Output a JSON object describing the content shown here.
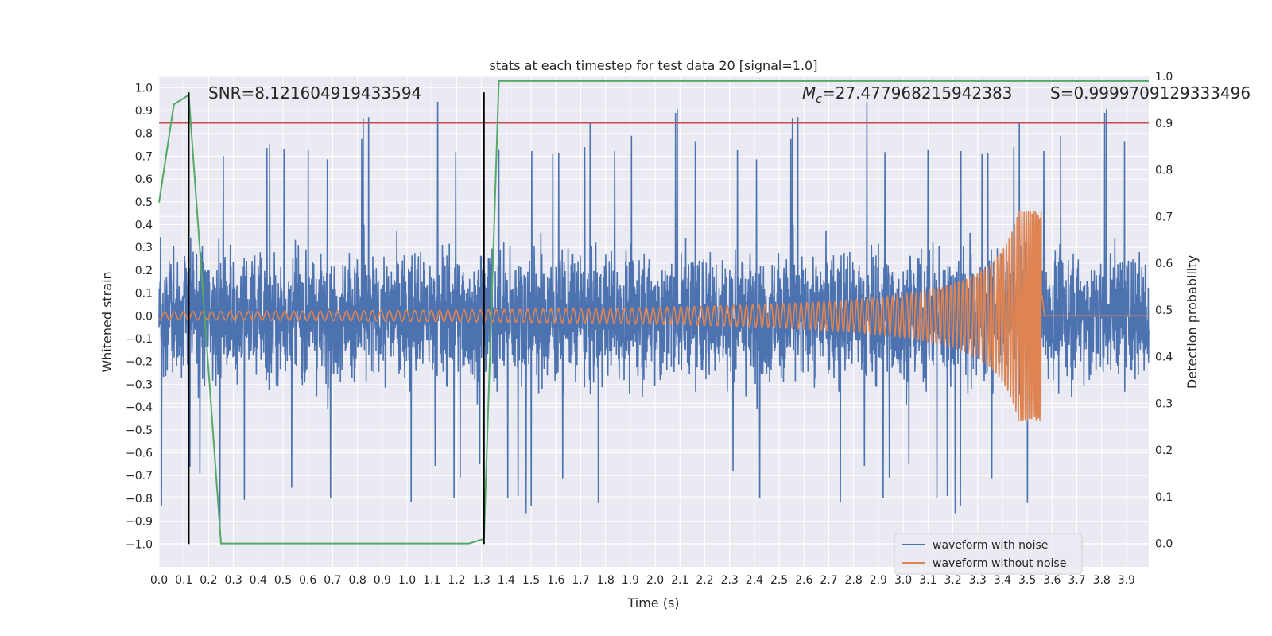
{
  "chart_data": {
    "type": "line",
    "title": "stats at each timestep for test data 20 [signal=1.0]",
    "xlabel": "Time (s)",
    "ylabel": "Whitened strain",
    "y2label": "Detection probability",
    "xlim": [
      0.0,
      3.99
    ],
    "ylim": [
      -1.1,
      1.05
    ],
    "y2lim": [
      -0.05,
      1.0
    ],
    "x_ticks": [
      0.0,
      0.1,
      0.2,
      0.3,
      0.4,
      0.5,
      0.6,
      0.7,
      0.8,
      0.9,
      1.0,
      1.1,
      1.2,
      1.3,
      1.4,
      1.5,
      1.6,
      1.7,
      1.8,
      1.9,
      2.0,
      2.1,
      2.2,
      2.3,
      2.4,
      2.5,
      2.6,
      2.7,
      2.8,
      2.9,
      3.0,
      3.1,
      3.2,
      3.3,
      3.4,
      3.5,
      3.6,
      3.7,
      3.8,
      3.9
    ],
    "x_tick_labels": [
      "0.0",
      "0.1",
      "0.2",
      "0.3",
      "0.4",
      "0.5",
      "0.6",
      "0.7",
      "0.8",
      "0.9",
      "1.0",
      "1.1",
      "1.2",
      "1.3",
      "1.4",
      "1.5",
      "1.6",
      "1.7",
      "1.8",
      "1.9",
      "2.0",
      "2.1",
      "2.2",
      "2.3",
      "2.4",
      "2.5",
      "2.6",
      "2.7",
      "2.8",
      "2.9",
      "3.0",
      "3.1",
      "3.2",
      "3.3",
      "3.4",
      "3.5",
      "3.6",
      "3.7",
      "3.8",
      "3.9"
    ],
    "y_ticks": [
      1.0,
      0.9,
      0.8,
      0.7,
      0.6,
      0.5,
      0.4,
      0.3,
      0.2,
      0.1,
      0.0,
      -0.1,
      -0.2,
      -0.3,
      -0.4,
      -0.5,
      -0.6,
      -0.7,
      -0.8,
      -0.9,
      -1.0
    ],
    "y_tick_labels": [
      "1.0",
      "0.9",
      "0.8",
      "0.7",
      "0.6",
      "0.5",
      "0.4",
      "0.3",
      "0.2",
      "0.1",
      "0.0",
      "−0.1",
      "−0.2",
      "−0.3",
      "−0.4",
      "−0.5",
      "−0.6",
      "−0.7",
      "−0.8",
      "−0.9",
      "−1.0"
    ],
    "y2_ticks": [
      1.0,
      0.9,
      0.8,
      0.7,
      0.6,
      0.5,
      0.4,
      0.3,
      0.2,
      0.1,
      0.0
    ],
    "y2_tick_labels": [
      "1.0",
      "0.9",
      "0.8",
      "0.7",
      "0.6",
      "0.5",
      "0.4",
      "0.3",
      "0.2",
      "0.1",
      "0.0"
    ],
    "annotations": {
      "snr": "SNR=8.121604919433594",
      "mc_symbol": "M",
      "mc_sub": "c",
      "mc_value": "=27.477968215942383",
      "s": "S=0.9999709129333496"
    },
    "series": [
      {
        "name": "waveform with noise",
        "color": "#4c72b0",
        "kind": "noise",
        "x_range": [
          0.0,
          3.99
        ],
        "envelope": 0.55,
        "peak": 0.97
      },
      {
        "name": "waveform without noise",
        "color": "#dd8452",
        "kind": "chirp",
        "x_range": [
          0.0,
          3.56
        ],
        "merger_time": 3.56,
        "peak_amplitude": 0.46
      },
      {
        "name": "detection probability",
        "color": "#55a868",
        "axis": "y2",
        "x": [
          0.0,
          0.06,
          0.12,
          0.25,
          1.25,
          1.31,
          1.37,
          3.99
        ],
        "values": [
          0.73,
          0.94,
          0.96,
          0.0,
          0.0,
          0.01,
          0.99,
          0.99
        ]
      }
    ],
    "threshold": {
      "axis": "y2",
      "value": 0.9,
      "color": "#c44e52"
    },
    "vertical_markers": {
      "x": [
        0.12,
        1.31
      ],
      "y_range": [
        -1.0,
        0.98
      ],
      "color": "#000000"
    },
    "legend": {
      "position": "lower-right",
      "entries": [
        "waveform with noise",
        "waveform without noise"
      ]
    }
  }
}
